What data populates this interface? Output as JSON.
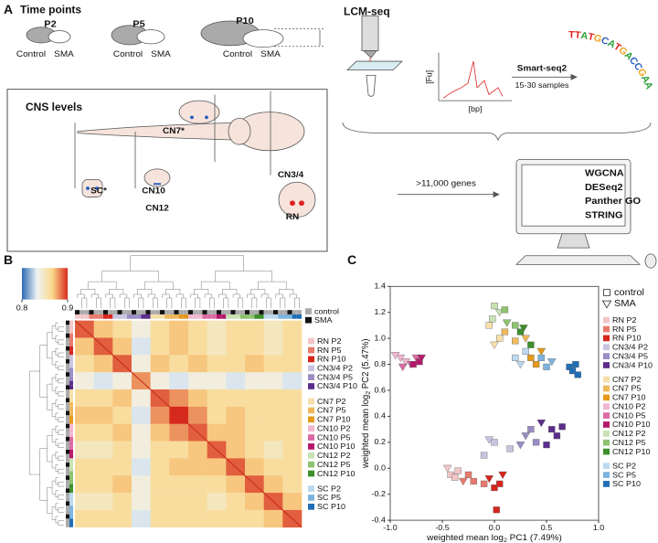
{
  "panel_a": {
    "label": "A",
    "time_title": "Time points",
    "times": [
      {
        "name": "P2",
        "groups": [
          "Control",
          "SMA"
        ]
      },
      {
        "name": "P5",
        "groups": [
          "Control",
          "SMA"
        ]
      },
      {
        "name": "P10",
        "groups": [
          "Control",
          "SMA"
        ]
      }
    ],
    "cns_title": "CNS levels",
    "regions": [
      "CN7*",
      "SC*",
      "CN10",
      "CN12",
      "CN3/4",
      "RN"
    ],
    "lcm_title": "LCM-seq",
    "y_unit": "[Fu]",
    "x_unit": "[bp]",
    "method": "Smart-seq2",
    "samples": "15-30 samples",
    "sequence": "TTATGCATGACCGAACA",
    "sequence_colors": {
      "T": "#e02020",
      "A": "#2e9e3a",
      "G": "#f0a21a",
      "C": "#2a5fc0"
    },
    "genes": ">11,000 genes",
    "tools": [
      "WGCNA",
      "DESeq2",
      "Panther GO",
      "STRING"
    ]
  },
  "panel_b": {
    "label": "B",
    "colorbar": {
      "range": [
        0.8,
        0.9
      ],
      "ticks": [
        0.8,
        0.9
      ],
      "colorscale": [
        "#2c6bb3",
        "#eef3f4",
        "#fbd88a",
        "#d62a1e"
      ]
    },
    "status_legend": [
      {
        "name": "control",
        "color": "#aaaaaa"
      },
      {
        "name": "SMA",
        "color": "#111111"
      }
    ],
    "legend": [
      {
        "name": "RN P2",
        "color": "#f2c6c6"
      },
      {
        "name": "RN P5",
        "color": "#e87a6c"
      },
      {
        "name": "RN P10",
        "color": "#d6261d"
      },
      {
        "name": "CN3/4 P2",
        "color": "#c9c3e0"
      },
      {
        "name": "CN3/4 P5",
        "color": "#9a8cc4"
      },
      {
        "name": "CN3/4 P10",
        "color": "#5b2d8c"
      },
      {
        "name": "CN7 P2",
        "color": "#f7dfa9"
      },
      {
        "name": "CN7 P5",
        "color": "#eeb85b"
      },
      {
        "name": "CN7 P10",
        "color": "#e59a1c"
      },
      {
        "name": "CN10 P2",
        "color": "#f1b6cf"
      },
      {
        "name": "CN10 P5",
        "color": "#dc6aa2"
      },
      {
        "name": "CN10 P10",
        "color": "#b5186b"
      },
      {
        "name": "CN12 P2",
        "color": "#c8e2b3"
      },
      {
        "name": "CN12 P5",
        "color": "#8dc26f"
      },
      {
        "name": "CN12 P10",
        "color": "#3d8f2c"
      },
      {
        "name": "SC P2",
        "color": "#bcd8ee"
      },
      {
        "name": "SC P5",
        "color": "#7db3dc"
      },
      {
        "name": "SC P10",
        "color": "#1f6db5"
      }
    ],
    "matrix": [
      [
        0.89,
        0.87,
        0.86,
        0.84,
        0.86,
        0.87,
        0.86,
        0.85,
        0.86,
        0.86,
        0.85,
        0.86
      ],
      [
        0.87,
        0.89,
        0.87,
        0.83,
        0.86,
        0.87,
        0.86,
        0.85,
        0.86,
        0.86,
        0.85,
        0.86
      ],
      [
        0.86,
        0.87,
        0.89,
        0.84,
        0.87,
        0.86,
        0.87,
        0.86,
        0.86,
        0.87,
        0.86,
        0.86
      ],
      [
        0.84,
        0.83,
        0.84,
        0.88,
        0.84,
        0.83,
        0.84,
        0.84,
        0.83,
        0.84,
        0.84,
        0.83
      ],
      [
        0.86,
        0.86,
        0.87,
        0.84,
        0.89,
        0.88,
        0.87,
        0.86,
        0.86,
        0.86,
        0.86,
        0.86
      ],
      [
        0.87,
        0.87,
        0.86,
        0.83,
        0.88,
        0.9,
        0.88,
        0.86,
        0.87,
        0.86,
        0.86,
        0.86
      ],
      [
        0.86,
        0.86,
        0.87,
        0.84,
        0.87,
        0.88,
        0.89,
        0.87,
        0.87,
        0.86,
        0.86,
        0.86
      ],
      [
        0.85,
        0.85,
        0.86,
        0.84,
        0.86,
        0.86,
        0.87,
        0.89,
        0.87,
        0.86,
        0.85,
        0.86
      ],
      [
        0.86,
        0.86,
        0.86,
        0.83,
        0.86,
        0.87,
        0.87,
        0.87,
        0.89,
        0.87,
        0.86,
        0.86
      ],
      [
        0.86,
        0.86,
        0.87,
        0.84,
        0.86,
        0.86,
        0.86,
        0.86,
        0.87,
        0.89,
        0.87,
        0.86
      ],
      [
        0.85,
        0.85,
        0.86,
        0.84,
        0.86,
        0.86,
        0.86,
        0.85,
        0.86,
        0.87,
        0.89,
        0.87
      ],
      [
        0.86,
        0.86,
        0.86,
        0.83,
        0.86,
        0.86,
        0.86,
        0.86,
        0.86,
        0.86,
        0.87,
        0.89
      ]
    ]
  },
  "panel_c": {
    "label": "C",
    "type": "scatter",
    "x_label": {
      "pre": "weighted mean log",
      "sub": "2",
      "post": " PC1 (7.49%)"
    },
    "y_label": {
      "pre": "weighted mean log",
      "sub": "2",
      "post": " PC2 (5.47%)"
    },
    "xlim": [
      -1,
      1
    ],
    "ylim": [
      -0.4,
      1.4
    ],
    "xticks": [
      {
        "value": -1,
        "label": "-1.0"
      },
      -0.5,
      {
        "value": 0,
        "label": "0.0"
      },
      0.5,
      {
        "value": 1,
        "label": "1.0"
      }
    ],
    "yticks": [
      -0.4,
      -0.2,
      {
        "value": 0,
        "label": "0.0"
      },
      0.2,
      0.4,
      0.6,
      0.8,
      {
        "value": 1,
        "label": "1.0"
      },
      1.2,
      1.4
    ],
    "marker_legend": [
      {
        "name": "control",
        "marker": "square"
      },
      {
        "name": "SMA",
        "marker": "triangle"
      }
    ],
    "series": [
      {
        "name": "RN P2",
        "color": "#f2c6c6",
        "x": [
          -0.42,
          -0.35,
          -0.45,
          -0.38
        ],
        "y": [
          -0.05,
          -0.02,
          0.0,
          -0.07
        ],
        "markers": [
          "square",
          "square",
          "triangle",
          "square"
        ]
      },
      {
        "name": "RN P5",
        "color": "#e87a6c",
        "x": [
          -0.2,
          -0.25,
          -0.1,
          -0.3
        ],
        "y": [
          -0.1,
          -0.05,
          -0.12,
          -0.1
        ],
        "markers": [
          "square",
          "square",
          "square",
          "triangle"
        ]
      },
      {
        "name": "RN P10",
        "color": "#d6261d",
        "x": [
          0.0,
          -0.05,
          0.08,
          0.02,
          0.05
        ],
        "y": [
          -0.15,
          -0.08,
          -0.05,
          -0.32,
          -0.12
        ],
        "markers": [
          "square",
          "triangle",
          "triangle",
          "square",
          "square"
        ]
      },
      {
        "name": "CN3/4 P2",
        "color": "#c9c3e0",
        "x": [
          0.0,
          -0.05,
          0.15,
          -0.1
        ],
        "y": [
          0.2,
          0.22,
          0.15,
          0.1
        ],
        "markers": [
          "square",
          "triangle",
          "square",
          "square"
        ]
      },
      {
        "name": "CN3/4 P5",
        "color": "#9a8cc4",
        "x": [
          0.3,
          0.4,
          0.25,
          0.35
        ],
        "y": [
          0.25,
          0.2,
          0.18,
          0.3
        ],
        "markers": [
          "triangle",
          "square",
          "triangle",
          "square"
        ]
      },
      {
        "name": "CN3/4 P10",
        "color": "#5b2d8c",
        "x": [
          0.55,
          0.6,
          0.45,
          0.65,
          0.5
        ],
        "y": [
          0.3,
          0.25,
          0.35,
          0.32,
          0.18
        ],
        "markers": [
          "square",
          "square",
          "triangle",
          "square",
          "square"
        ]
      },
      {
        "name": "CN7 P2",
        "color": "#f7dfa9",
        "x": [
          0.05,
          -0.05,
          0.0
        ],
        "y": [
          1.0,
          1.1,
          0.95
        ],
        "markers": [
          "square",
          "square",
          "triangle"
        ]
      },
      {
        "name": "CN7 P5",
        "color": "#eeb85b",
        "x": [
          0.2,
          0.3,
          0.1
        ],
        "y": [
          0.98,
          1.0,
          1.05
        ],
        "markers": [
          "square",
          "triangle",
          "square"
        ]
      },
      {
        "name": "CN7 P10",
        "color": "#e59a1c",
        "x": [
          0.35,
          0.45,
          0.4
        ],
        "y": [
          0.85,
          0.9,
          0.8
        ],
        "markers": [
          "square",
          "triangle",
          "square"
        ]
      },
      {
        "name": "CN10 P2",
        "color": "#f1b6cf",
        "x": [
          -0.9,
          -0.85,
          -0.95
        ],
        "y": [
          0.85,
          0.82,
          0.87
        ],
        "markers": [
          "triangle",
          "triangle",
          "triangle"
        ]
      },
      {
        "name": "CN10 P5",
        "color": "#dc6aa2",
        "x": [
          -0.8,
          -0.75,
          -0.88
        ],
        "y": [
          0.8,
          0.85,
          0.78
        ],
        "markers": [
          "triangle",
          "triangle",
          "triangle"
        ]
      },
      {
        "name": "CN10 P10",
        "color": "#b5186b",
        "x": [
          -0.72,
          -0.7,
          -0.78
        ],
        "y": [
          0.82,
          0.85,
          0.8
        ],
        "markers": [
          "square",
          "triangle",
          "square"
        ]
      },
      {
        "name": "CN12 P2",
        "color": "#c8e2b3",
        "x": [
          0.0,
          0.05,
          -0.02
        ],
        "y": [
          1.25,
          1.2,
          1.15
        ],
        "markers": [
          "square",
          "triangle",
          "square"
        ]
      },
      {
        "name": "CN12 P5",
        "color": "#8dc26f",
        "x": [
          0.1,
          0.12,
          0.2
        ],
        "y": [
          1.22,
          1.12,
          1.1
        ],
        "markers": [
          "square",
          "triangle",
          "square"
        ]
      },
      {
        "name": "CN12 P10",
        "color": "#3d8f2c",
        "x": [
          0.25,
          0.35,
          0.28
        ],
        "y": [
          1.05,
          0.95,
          1.08
        ],
        "markers": [
          "square",
          "square",
          "triangle"
        ]
      },
      {
        "name": "SC P2",
        "color": "#bcd8ee",
        "x": [
          0.2,
          0.3,
          0.25
        ],
        "y": [
          0.85,
          0.9,
          0.8
        ],
        "markers": [
          "square",
          "square",
          "triangle"
        ]
      },
      {
        "name": "SC P5",
        "color": "#7db3dc",
        "x": [
          0.45,
          0.5,
          0.55
        ],
        "y": [
          0.85,
          0.78,
          0.82
        ],
        "markers": [
          "square",
          "square",
          "triangle"
        ]
      },
      {
        "name": "SC P10",
        "color": "#1f6db5",
        "x": [
          0.72,
          0.78,
          0.75,
          0.8
        ],
        "y": [
          0.78,
          0.8,
          0.75,
          0.72
        ],
        "markers": [
          "square",
          "square",
          "square",
          "square"
        ]
      }
    ]
  }
}
